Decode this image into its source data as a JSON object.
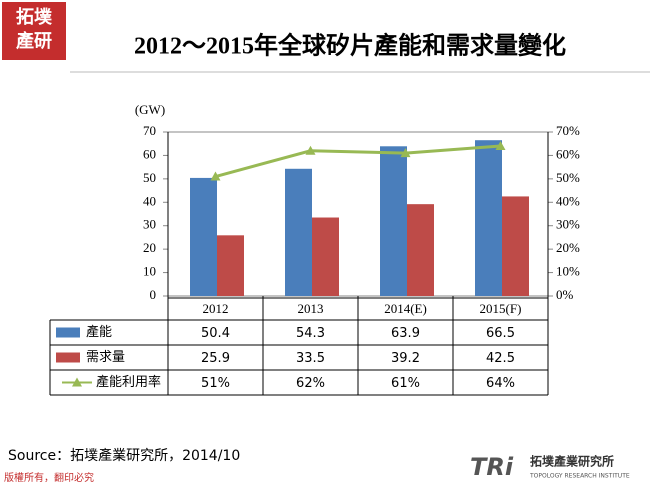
{
  "logo": {
    "line1": "拓墣",
    "line2": "產研"
  },
  "chart_data": {
    "type": "bar",
    "title": "2012～2015年全球矽片產能和需求量變化",
    "y_label": "(GW)",
    "categories": [
      "2012",
      "2013",
      "2014(E)",
      "2015(F)"
    ],
    "series": [
      {
        "name": "產能",
        "color": "#4a7ebb",
        "values": [
          50.4,
          54.3,
          63.9,
          66.5
        ]
      },
      {
        "name": "需求量",
        "color": "#be4b48",
        "values": [
          25.9,
          33.5,
          39.2,
          42.5
        ]
      },
      {
        "name": "產能利用率",
        "type": "line",
        "axis": "y2",
        "color": "#98b954",
        "values": [
          51,
          62,
          61,
          64
        ],
        "value_labels": [
          "51%",
          "62%",
          "61%",
          "64%"
        ]
      }
    ],
    "ylim": [
      0,
      70
    ],
    "yticks": [
      0,
      10,
      20,
      30,
      40,
      50,
      60,
      70
    ],
    "y2lim": [
      0,
      70
    ],
    "y2ticks": [
      {
        "value": 0,
        "label": "0%"
      },
      {
        "value": 10,
        "label": "10%"
      },
      {
        "value": 20,
        "label": "20%"
      },
      {
        "value": 30,
        "label": "30%"
      },
      {
        "value": 40,
        "label": "40%"
      },
      {
        "value": 50,
        "label": "50%"
      },
      {
        "value": 60,
        "label": "60%"
      },
      {
        "value": 70,
        "label": "70%"
      }
    ]
  },
  "source": "Source：拓墣產業研究所，2014/10",
  "footer": "版權所有，翻印必究",
  "brand": {
    "mark": "TRi",
    "name": "拓墣產業研究所",
    "english": "TOPOLOGY RESEARCH INSTITUTE"
  }
}
